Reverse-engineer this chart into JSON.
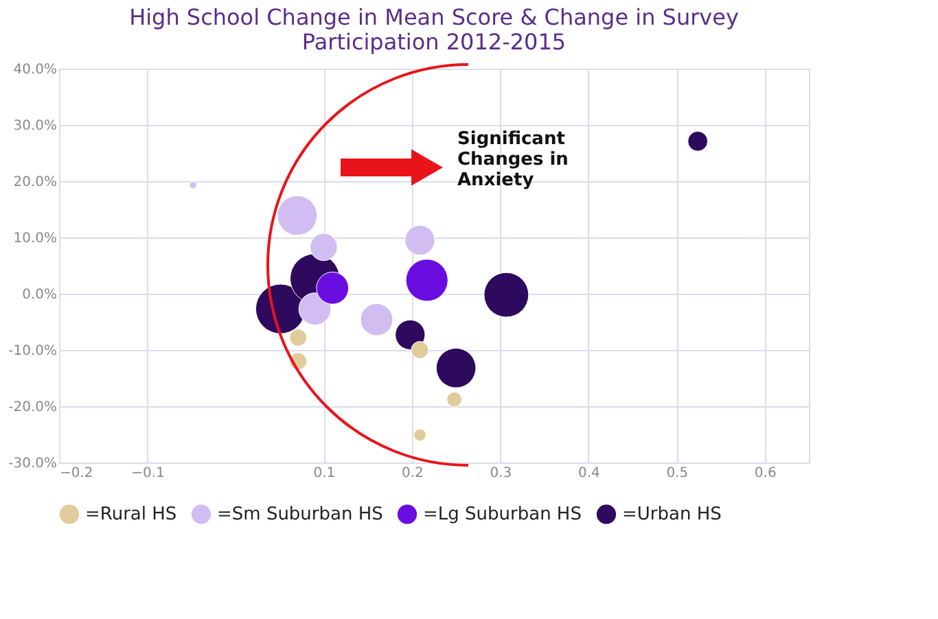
{
  "chart_data": {
    "type": "bubble",
    "title": "High School Change in Mean Score & Change in Survey\nParticipation 2012-2015",
    "xlim": [
      -0.2,
      0.65
    ],
    "xticks": [
      -0.2,
      -0.1,
      0.1,
      0.2,
      0.3,
      0.4,
      0.5,
      0.6
    ],
    "ylim": [
      -30,
      40
    ],
    "yticks": [
      {
        "value": -30,
        "label": "-30.0%"
      },
      {
        "value": -20,
        "label": "-20.0%"
      },
      {
        "value": -10,
        "label": "-10.0%"
      },
      {
        "value": 0,
        "label": "0.0%"
      },
      {
        "value": 10,
        "label": "10.0%"
      },
      {
        "value": 20,
        "label": "20.0%"
      },
      {
        "value": 30,
        "label": "30.0%"
      },
      {
        "value": 40,
        "label": "40.0%"
      }
    ],
    "grid": true,
    "legend": "bottom",
    "marker": "circle",
    "series": [
      {
        "name": "=Rural HS",
        "color": "#e0cc9a",
        "x": [
          0.071,
          0.071,
          0.209,
          0.248,
          0.209
        ],
        "values": [
          -7.8,
          -12.0,
          -10.0,
          -18.8,
          -25.1
        ],
        "sizes": [
          0.12,
          0.12,
          0.12,
          0.09,
          0.06
        ]
      },
      {
        "name": "=Sm Suburban HS",
        "color": "#d2bdf2",
        "x": [
          -0.048,
          0.07,
          0.1,
          0.09,
          0.16,
          0.209
        ],
        "values": [
          19.3,
          13.9,
          8.3,
          -2.7,
          -4.6,
          9.5
        ],
        "sizes": [
          0.02,
          0.64,
          0.3,
          0.42,
          0.42,
          0.36
        ]
      },
      {
        "name": "=Lg Suburban HS",
        "color": "#6a0de0",
        "x": [
          0.217,
          0.11
        ],
        "values": [
          2.4,
          1.0
        ],
        "sizes": [
          0.72,
          0.42
        ]
      },
      {
        "name": "=Urban HS",
        "color": "#2e0a5e",
        "x": [
          0.051,
          0.09,
          0.198,
          0.25,
          0.307,
          0.524
        ],
        "values": [
          -2.7,
          2.7,
          -7.3,
          -13.2,
          -0.2,
          27.1
        ],
        "sizes": [
          1.0,
          1.0,
          0.36,
          0.64,
          0.81,
          0.16
        ]
      }
    ],
    "annotations": [
      "Significant\nChanges in\nAnxiety"
    ]
  }
}
